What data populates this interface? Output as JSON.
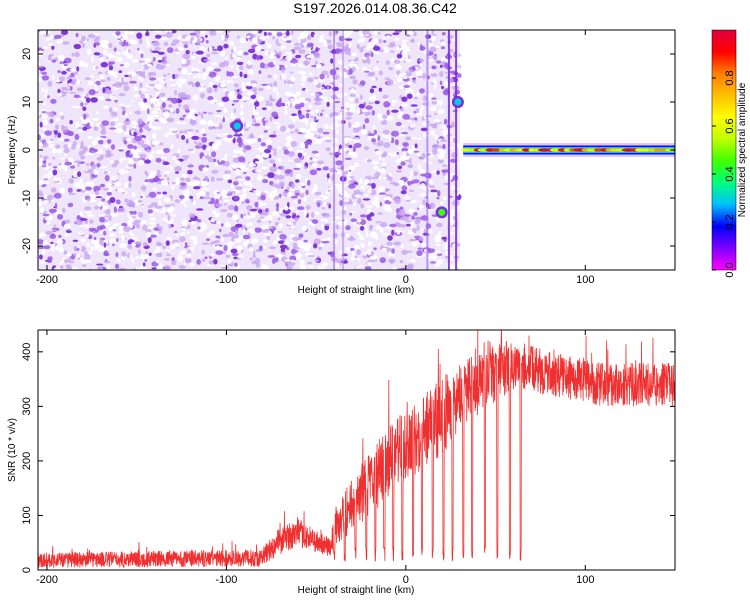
{
  "figure": {
    "title": "S197.2026.014.08.36.C42"
  },
  "chart_data": [
    {
      "type": "heatmap",
      "name": "spectrogram",
      "xlabel": "Height of straight line (km)",
      "ylabel": "Frequency (Hz)",
      "xlim": [
        -205,
        150
      ],
      "ylim": [
        -25,
        25
      ],
      "xticks": [
        -200,
        -100,
        0,
        100
      ],
      "yticks": [
        -20,
        -10,
        0,
        10,
        20
      ],
      "colorbar": {
        "label": "Normalized spectral amplitude",
        "range": [
          0.0,
          1.0
        ],
        "ticks": [
          0.0,
          0.2,
          0.4,
          0.6,
          0.8
        ],
        "colormap": [
          "#ff00ff",
          "#7f00ff",
          "#0000ff",
          "#00c0ff",
          "#00ff80",
          "#40ff00",
          "#c0ff00",
          "#ffff00",
          "#ffc000",
          "#ff8000",
          "#ff0000",
          "#e0003c"
        ]
      },
      "noise_region": {
        "x_from": -205,
        "x_to": 30,
        "color": "#7a2fd8"
      },
      "signal": {
        "carrier_freq": 0,
        "carrier_from": 32,
        "carrier_to": 150,
        "features": [
          {
            "x": -94,
            "y": 5,
            "amp": 0.3
          },
          {
            "x": 29,
            "y": 10,
            "amp": 0.3
          },
          {
            "x": 20,
            "y": -13,
            "amp": 0.45
          }
        ]
      }
    },
    {
      "type": "line",
      "name": "snr",
      "xlabel": "Height of straight line (km)",
      "ylabel": "SNR (10 * v/v)",
      "xlim": [
        -205,
        150
      ],
      "ylim": [
        0,
        440
      ],
      "xticks": [
        -200,
        -100,
        0,
        100
      ],
      "yticks": [
        0,
        100,
        200,
        300,
        400
      ],
      "color": "#f03030",
      "series": {
        "profile": [
          {
            "x": -205,
            "base": 18,
            "noise": 14
          },
          {
            "x": -80,
            "base": 22,
            "noise": 16
          },
          {
            "x": -72,
            "base": 50,
            "noise": 25
          },
          {
            "x": -60,
            "base": 68,
            "noise": 25
          },
          {
            "x": -42,
            "base": 40,
            "noise": 18
          },
          {
            "x": -40,
            "base": 80,
            "noise": 40
          },
          {
            "x": -20,
            "base": 160,
            "noise": 60
          },
          {
            "x": 0,
            "base": 230,
            "noise": 70
          },
          {
            "x": 20,
            "base": 280,
            "noise": 70
          },
          {
            "x": 35,
            "base": 330,
            "noise": 60
          },
          {
            "x": 55,
            "base": 370,
            "noise": 50
          },
          {
            "x": 62,
            "base": 375,
            "noise": 45
          },
          {
            "x": 80,
            "base": 360,
            "noise": 40
          },
          {
            "x": 110,
            "base": 340,
            "noise": 40
          },
          {
            "x": 150,
            "base": 340,
            "noise": 40
          }
        ],
        "dips": [
          -40,
          -34,
          -28,
          -22,
          -17,
          -12,
          -7,
          -2,
          4,
          9,
          15,
          21,
          26,
          32,
          37,
          44,
          51,
          58,
          64
        ]
      }
    }
  ]
}
